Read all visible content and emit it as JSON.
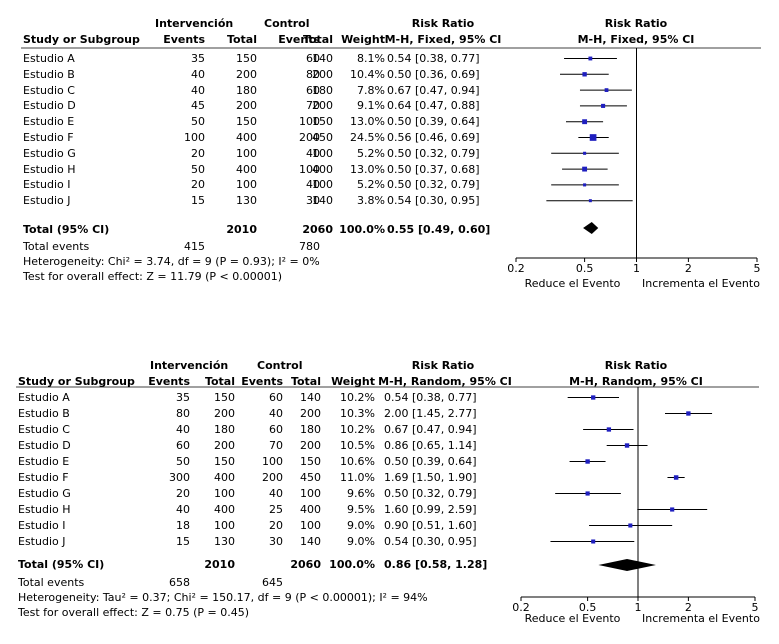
{
  "chart_data": [
    {
      "type": "forest",
      "scale": "log",
      "model": "M-H, Fixed, 95% CI",
      "headers": {
        "group1": "Intervención",
        "group2": "Control",
        "study": "Study or Subgroup",
        "events": "Events",
        "total": "Total",
        "weight": "Weight",
        "rr_title": "Risk Ratio",
        "rr_sub": "M-H, Fixed, 95% CI",
        "plot_title": "Risk Ratio",
        "plot_sub": "M-H, Fixed, 95% CI"
      },
      "studies": [
        {
          "name": "Estudio A",
          "e1": 35,
          "t1": 150,
          "e2": 60,
          "t2": 140,
          "weight": "8.1%",
          "rr": 0.54,
          "lo": 0.38,
          "hi": 0.77,
          "rr_text": "0.54 [0.38, 0.77]"
        },
        {
          "name": "Estudio B",
          "e1": 40,
          "t1": 200,
          "e2": 80,
          "t2": 200,
          "weight": "10.4%",
          "rr": 0.5,
          "lo": 0.36,
          "hi": 0.69,
          "rr_text": "0.50 [0.36, 0.69]"
        },
        {
          "name": "Estudio C",
          "e1": 40,
          "t1": 180,
          "e2": 60,
          "t2": 180,
          "weight": "7.8%",
          "rr": 0.67,
          "lo": 0.47,
          "hi": 0.94,
          "rr_text": "0.67 [0.47, 0.94]"
        },
        {
          "name": "Estudio D",
          "e1": 45,
          "t1": 200,
          "e2": 70,
          "t2": 200,
          "weight": "9.1%",
          "rr": 0.64,
          "lo": 0.47,
          "hi": 0.88,
          "rr_text": "0.64 [0.47, 0.88]"
        },
        {
          "name": "Estudio E",
          "e1": 50,
          "t1": 150,
          "e2": 100,
          "t2": 150,
          "weight": "13.0%",
          "rr": 0.5,
          "lo": 0.39,
          "hi": 0.64,
          "rr_text": "0.50 [0.39, 0.64]"
        },
        {
          "name": "Estudio F",
          "e1": 100,
          "t1": 400,
          "e2": 200,
          "t2": 450,
          "weight": "24.5%",
          "rr": 0.56,
          "lo": 0.46,
          "hi": 0.69,
          "rr_text": "0.56 [0.46, 0.69]"
        },
        {
          "name": "Estudio G",
          "e1": 20,
          "t1": 100,
          "e2": 40,
          "t2": 100,
          "weight": "5.2%",
          "rr": 0.5,
          "lo": 0.32,
          "hi": 0.79,
          "rr_text": "0.50 [0.32, 0.79]"
        },
        {
          "name": "Estudio H",
          "e1": 50,
          "t1": 400,
          "e2": 100,
          "t2": 400,
          "weight": "13.0%",
          "rr": 0.5,
          "lo": 0.37,
          "hi": 0.68,
          "rr_text": "0.50 [0.37, 0.68]"
        },
        {
          "name": "Estudio I",
          "e1": 20,
          "t1": 100,
          "e2": 40,
          "t2": 100,
          "weight": "5.2%",
          "rr": 0.5,
          "lo": 0.32,
          "hi": 0.79,
          "rr_text": "0.50 [0.32, 0.79]"
        },
        {
          "name": "Estudio J",
          "e1": 15,
          "t1": 130,
          "e2": 30,
          "t2": 140,
          "weight": "3.8%",
          "rr": 0.54,
          "lo": 0.3,
          "hi": 0.95,
          "rr_text": "0.54 [0.30, 0.95]"
        }
      ],
      "total": {
        "label": "Total (95% CI)",
        "t1": 2010,
        "t2": 2060,
        "weight": "100.0%",
        "rr": 0.55,
        "lo": 0.49,
        "hi": 0.6,
        "rr_text": "0.55 [0.49, 0.60]"
      },
      "total_events": {
        "label": "Total events",
        "e1": 415,
        "e2": 780
      },
      "heterogeneity": "Heterogeneity: Chi² = 3.74, df = 9 (P = 0.93); I² = 0%",
      "overall_effect": "Test for overall effect: Z = 11.79 (P < 0.00001)",
      "xlim": [
        0.2,
        5
      ],
      "ticks": [
        {
          "v": 0.2,
          "label": "0.2"
        },
        {
          "v": 0.5,
          "label": "0.5"
        },
        {
          "v": 1,
          "label": "1"
        },
        {
          "v": 2,
          "label": "2"
        },
        {
          "v": 5,
          "label": "5"
        }
      ],
      "favours_left": "Reduce el Evento",
      "favours_right": "Incrementa el Evento",
      "colors": {
        "marker": "#1f1fbf",
        "line": "#000000"
      }
    },
    {
      "type": "forest",
      "scale": "log",
      "model": "M-H, Random, 95% CI",
      "headers": {
        "group1": "Intervención",
        "group2": "Control",
        "study": "Study or Subgroup",
        "events": "Events",
        "total": "Total",
        "weight": "Weight",
        "rr_title": "Risk Ratio",
        "rr_sub": "M-H, Random, 95% CI",
        "plot_title": "Risk Ratio",
        "plot_sub": "M-H, Random, 95% CI"
      },
      "studies": [
        {
          "name": "Estudio A",
          "e1": 35,
          "t1": 150,
          "e2": 60,
          "t2": 140,
          "weight": "10.2%",
          "rr": 0.54,
          "lo": 0.38,
          "hi": 0.77,
          "rr_text": "0.54 [0.38, 0.77]"
        },
        {
          "name": "Estudio B",
          "e1": 80,
          "t1": 200,
          "e2": 40,
          "t2": 200,
          "weight": "10.3%",
          "rr": 2.0,
          "lo": 1.45,
          "hi": 2.77,
          "rr_text": "2.00 [1.45, 2.77]"
        },
        {
          "name": "Estudio C",
          "e1": 40,
          "t1": 180,
          "e2": 60,
          "t2": 180,
          "weight": "10.2%",
          "rr": 0.67,
          "lo": 0.47,
          "hi": 0.94,
          "rr_text": "0.67 [0.47, 0.94]"
        },
        {
          "name": "Estudio D",
          "e1": 60,
          "t1": 200,
          "e2": 70,
          "t2": 200,
          "weight": "10.5%",
          "rr": 0.86,
          "lo": 0.65,
          "hi": 1.14,
          "rr_text": "0.86 [0.65, 1.14]"
        },
        {
          "name": "Estudio E",
          "e1": 50,
          "t1": 150,
          "e2": 100,
          "t2": 150,
          "weight": "10.6%",
          "rr": 0.5,
          "lo": 0.39,
          "hi": 0.64,
          "rr_text": "0.50 [0.39, 0.64]"
        },
        {
          "name": "Estudio F",
          "e1": 300,
          "t1": 400,
          "e2": 200,
          "t2": 450,
          "weight": "11.0%",
          "rr": 1.69,
          "lo": 1.5,
          "hi": 1.9,
          "rr_text": "1.69 [1.50, 1.90]"
        },
        {
          "name": "Estudio G",
          "e1": 20,
          "t1": 100,
          "e2": 40,
          "t2": 100,
          "weight": "9.6%",
          "rr": 0.5,
          "lo": 0.32,
          "hi": 0.79,
          "rr_text": "0.50 [0.32, 0.79]"
        },
        {
          "name": "Estudio H",
          "e1": 40,
          "t1": 400,
          "e2": 25,
          "t2": 400,
          "weight": "9.5%",
          "rr": 1.6,
          "lo": 0.99,
          "hi": 2.59,
          "rr_text": "1.60 [0.99, 2.59]"
        },
        {
          "name": "Estudio I",
          "e1": 18,
          "t1": 100,
          "e2": 20,
          "t2": 100,
          "weight": "9.0%",
          "rr": 0.9,
          "lo": 0.51,
          "hi": 1.6,
          "rr_text": "0.90 [0.51, 1.60]"
        },
        {
          "name": "Estudio J",
          "e1": 15,
          "t1": 130,
          "e2": 30,
          "t2": 140,
          "weight": "9.0%",
          "rr": 0.54,
          "lo": 0.3,
          "hi": 0.95,
          "rr_text": "0.54 [0.30, 0.95]"
        }
      ],
      "total": {
        "label": "Total (95% CI)",
        "t1": 2010,
        "t2": 2060,
        "weight": "100.0%",
        "rr": 0.86,
        "lo": 0.58,
        "hi": 1.28,
        "rr_text": "0.86 [0.58, 1.28]"
      },
      "total_events": {
        "label": "Total events",
        "e1": 658,
        "e2": 645
      },
      "heterogeneity": "Heterogeneity: Tau² = 0.37; Chi² = 150.17, df = 9 (P < 0.00001); I² = 94%",
      "overall_effect": "Test for overall effect: Z = 0.75 (P = 0.45)",
      "xlim": [
        0.2,
        5
      ],
      "ticks": [
        {
          "v": 0.2,
          "label": "0.2"
        },
        {
          "v": 0.5,
          "label": "0.5"
        },
        {
          "v": 1,
          "label": "1"
        },
        {
          "v": 2,
          "label": "2"
        },
        {
          "v": 5,
          "label": "5"
        }
      ],
      "favours_left": "Reduce el Evento",
      "favours_right": "Incrementa el Evento",
      "colors": {
        "marker": "#1f1fbf",
        "line": "#000000"
      }
    }
  ]
}
